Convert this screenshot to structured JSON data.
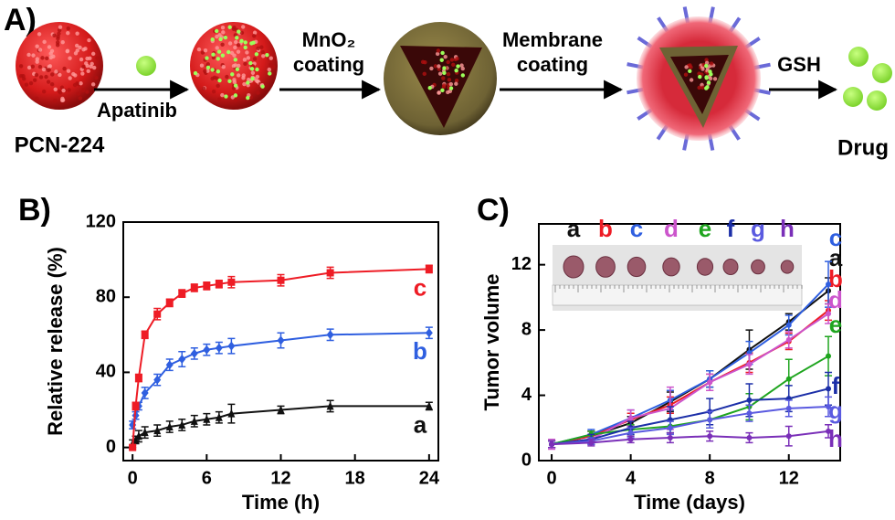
{
  "scheme": {
    "label": "A)",
    "start": "PCN-224",
    "drug_step": "Apatinib",
    "coating_1": [
      "MnO₂",
      "coating"
    ],
    "coating_2": [
      "Membrane",
      "coating"
    ],
    "release_step": "GSH",
    "end": "Drug"
  },
  "chart_data": [
    {
      "type": "line",
      "label": "B)",
      "x_label": "Time (h)",
      "y_label": "Relative release (%)",
      "x": [
        0,
        0.25,
        0.5,
        1,
        2,
        3,
        4,
        5,
        6,
        7,
        8,
        12,
        16,
        24
      ],
      "xlim": [
        -0.75,
        24.75
      ],
      "xticks": [
        0,
        6,
        12,
        18,
        24
      ],
      "ylim": [
        -7,
        120
      ],
      "yticks": [
        0,
        40,
        80,
        120
      ],
      "series": [
        {
          "name": "a",
          "color": "#111111",
          "marker": "triangle",
          "values": [
            2,
            4,
            6,
            8,
            9,
            11,
            12,
            14,
            15,
            16,
            18,
            20,
            22,
            22
          ],
          "errors": [
            2,
            2,
            3,
            3,
            3,
            3,
            3,
            3,
            3,
            3,
            5,
            2,
            3,
            2
          ]
        },
        {
          "name": "b",
          "color": "#2f5fe0",
          "marker": "diamond",
          "values": [
            12,
            17,
            22,
            29,
            36,
            44,
            47,
            50,
            52,
            53,
            54,
            57,
            60,
            61
          ],
          "errors": [
            2,
            2,
            2,
            3,
            3,
            3,
            4,
            3,
            3,
            3,
            4,
            4,
            3,
            3
          ]
        },
        {
          "name": "c",
          "color": "#ee1c25",
          "marker": "square",
          "values": [
            0,
            22,
            37,
            60,
            71,
            77,
            82,
            85,
            86,
            87,
            88,
            89,
            93,
            95
          ],
          "errors": [
            1,
            2,
            2,
            2,
            3,
            2,
            2,
            2,
            2,
            2,
            3,
            3,
            3,
            2
          ]
        }
      ]
    },
    {
      "type": "line",
      "label": "C)",
      "x_label": "Time (days)",
      "y_label": "Tumor volume",
      "x": [
        0,
        2,
        4,
        6,
        8,
        10,
        12,
        14
      ],
      "xlim": [
        -0.65,
        14.6
      ],
      "xticks": [
        0,
        4,
        8,
        12
      ],
      "ylim": [
        0,
        14.5
      ],
      "yticks": [
        0,
        4,
        8,
        12
      ],
      "series": [
        {
          "name": "a",
          "color": "#111111",
          "values": [
            1,
            1.5,
            2.3,
            3.6,
            5,
            6.8,
            8.5,
            10.4
          ],
          "errors": [
            0.2,
            0.3,
            0.4,
            0.6,
            0.5,
            1.2,
            0.5,
            0.8
          ]
        },
        {
          "name": "b",
          "color": "#ee1c25",
          "values": [
            1,
            1.5,
            2.5,
            3.4,
            4.8,
            6,
            7.3,
            9.2
          ],
          "errors": [
            0.2,
            0.3,
            0.4,
            0.5,
            0.5,
            0.6,
            0.5,
            0.6
          ]
        },
        {
          "name": "c",
          "color": "#2f5fe0",
          "values": [
            1,
            1.6,
            2.6,
            3.7,
            5,
            6.6,
            8.3,
            10.8
          ],
          "errors": [
            0.2,
            0.3,
            0.5,
            0.6,
            0.5,
            0.7,
            0.6,
            1.4
          ]
        },
        {
          "name": "d",
          "color": "#cc55cc",
          "values": [
            1,
            1.3,
            2.6,
            3.2,
            4.8,
            5.9,
            7.4,
            9
          ],
          "errors": [
            0.3,
            0.3,
            0.5,
            1.3,
            0.5,
            0.6,
            0.5,
            0.6
          ]
        },
        {
          "name": "e",
          "color": "#1fa51f",
          "values": [
            1,
            1.6,
            1.9,
            2.1,
            2.5,
            3.3,
            5,
            6.4
          ],
          "errors": [
            0.2,
            0.2,
            0.3,
            0.4,
            0.5,
            0.8,
            1.2,
            1.2
          ]
        },
        {
          "name": "f",
          "color": "#1c2fa8",
          "values": [
            1,
            1.3,
            2,
            2.5,
            3,
            3.7,
            3.8,
            4.4
          ],
          "errors": [
            0.2,
            0.3,
            0.4,
            0.8,
            0.8,
            1,
            0.8,
            1
          ]
        },
        {
          "name": "g",
          "color": "#5a5ae0",
          "values": [
            1,
            1.2,
            1.7,
            2,
            2.5,
            2.9,
            3.2,
            3.3
          ],
          "errors": [
            0.2,
            0.2,
            0.3,
            0.4,
            0.5,
            0.5,
            0.5,
            0.6
          ]
        },
        {
          "name": "h",
          "color": "#7a2fb8",
          "values": [
            1,
            1.1,
            1.3,
            1.4,
            1.5,
            1.4,
            1.5,
            1.8
          ],
          "errors": [
            0.2,
            0.2,
            0.2,
            0.3,
            0.3,
            0.3,
            0.6,
            0.4
          ]
        }
      ]
    }
  ]
}
